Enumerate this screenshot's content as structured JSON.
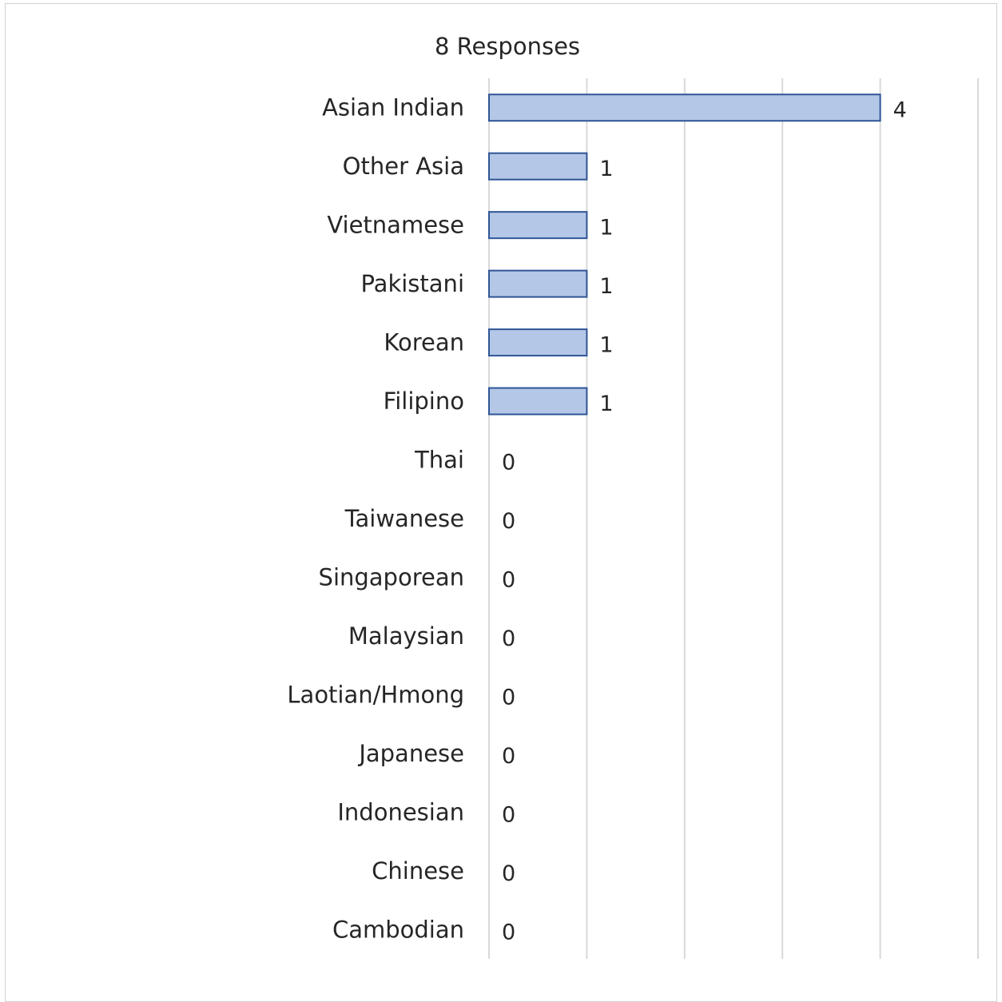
{
  "chart_data": {
    "type": "bar",
    "orientation": "horizontal",
    "title": "8 Responses",
    "categories": [
      "Asian Indian",
      "Other Asia",
      "Vietnamese",
      "Pakistani",
      "Korean",
      "Filipino",
      "Thai",
      "Taiwanese",
      "Singaporean",
      "Malaysian",
      "Laotian/Hmong",
      "Japanese",
      "Indonesian",
      "Chinese",
      "Cambodian"
    ],
    "values": [
      4,
      1,
      1,
      1,
      1,
      1,
      0,
      0,
      0,
      0,
      0,
      0,
      0,
      0,
      0
    ],
    "xlim": [
      0,
      5
    ],
    "grid": true,
    "legend": "none",
    "data_labels": true,
    "colors": {
      "bar_fill": "#b4c7e7",
      "bar_stroke": "#2f5597",
      "grid": "#d9d9d9",
      "text": "#262626"
    }
  }
}
